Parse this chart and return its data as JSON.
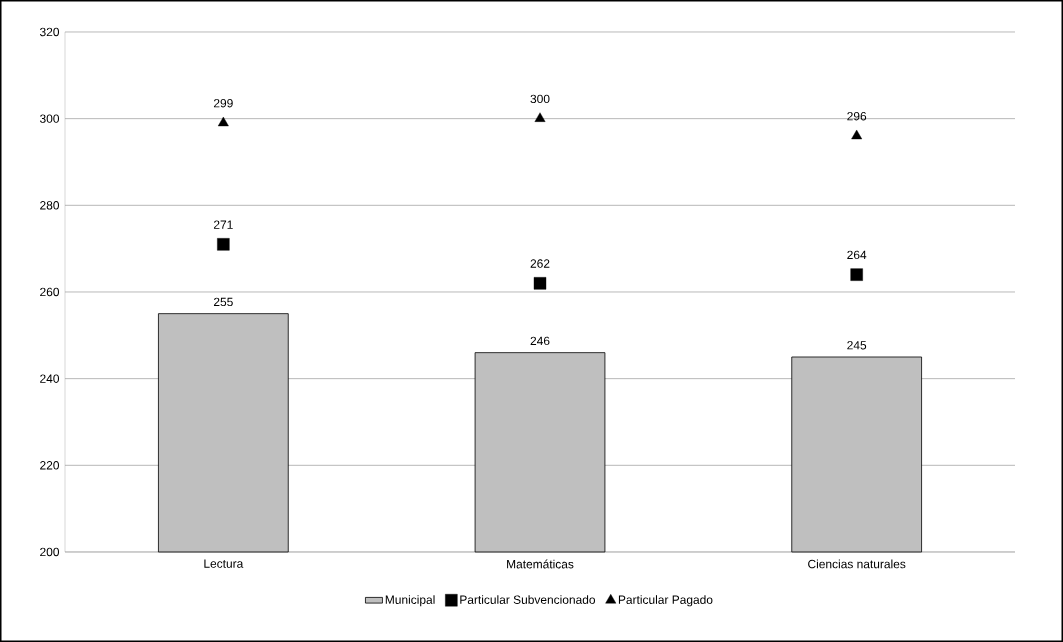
{
  "chart_data": {
    "type": "bar",
    "categories": [
      "Lectura",
      "Matemáticas",
      "Ciencias naturales"
    ],
    "series": [
      {
        "name": "Municipal",
        "color": "#bfbfbf",
        "values": [
          255,
          246,
          245
        ]
      },
      {
        "name": "Particular Subvencionado",
        "type": "scatter",
        "marker": "square",
        "color": "#000000",
        "values": [
          271,
          262,
          264
        ]
      },
      {
        "name": "Particular Pagado",
        "type": "scatter",
        "marker": "triangle",
        "color": "#000000",
        "values": [
          299,
          300,
          296
        ]
      }
    ],
    "ylim": [
      200,
      320
    ],
    "yticks": [
      200,
      220,
      240,
      260,
      280,
      300,
      320
    ],
    "grid": "y",
    "legend": "bottom",
    "data_labels": true
  }
}
